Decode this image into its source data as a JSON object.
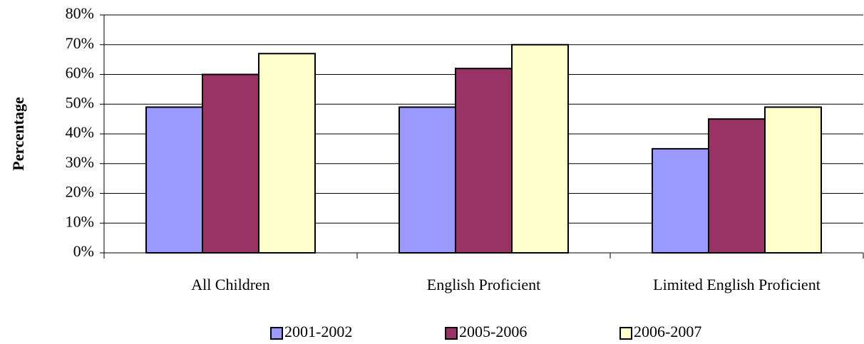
{
  "chart_data": {
    "type": "bar",
    "y_label": "Percentage",
    "categories": [
      "All Children",
      "English Proficient",
      "Limited English Proficient"
    ],
    "series": [
      {
        "name": "2001-2002",
        "color": "#9999ff",
        "values": [
          49,
          49,
          35
        ]
      },
      {
        "name": "2005-2006",
        "color": "#993366",
        "values": [
          60,
          62,
          45
        ]
      },
      {
        "name": "2006-2007",
        "color": "#ffffcc",
        "values": [
          67,
          70,
          49
        ]
      }
    ],
    "ylim": [
      0,
      80
    ],
    "yticks": [
      {
        "value": 0,
        "label": "0%"
      },
      {
        "value": 10,
        "label": "10%"
      },
      {
        "value": 20,
        "label": "20%"
      },
      {
        "value": 30,
        "label": "30%"
      },
      {
        "value": 40,
        "label": "40%"
      },
      {
        "value": 50,
        "label": "50%"
      },
      {
        "value": 60,
        "label": "60%"
      },
      {
        "value": 70,
        "label": "70%"
      },
      {
        "value": 80,
        "label": "80%"
      }
    ],
    "grid": true,
    "legend": "bottom"
  }
}
